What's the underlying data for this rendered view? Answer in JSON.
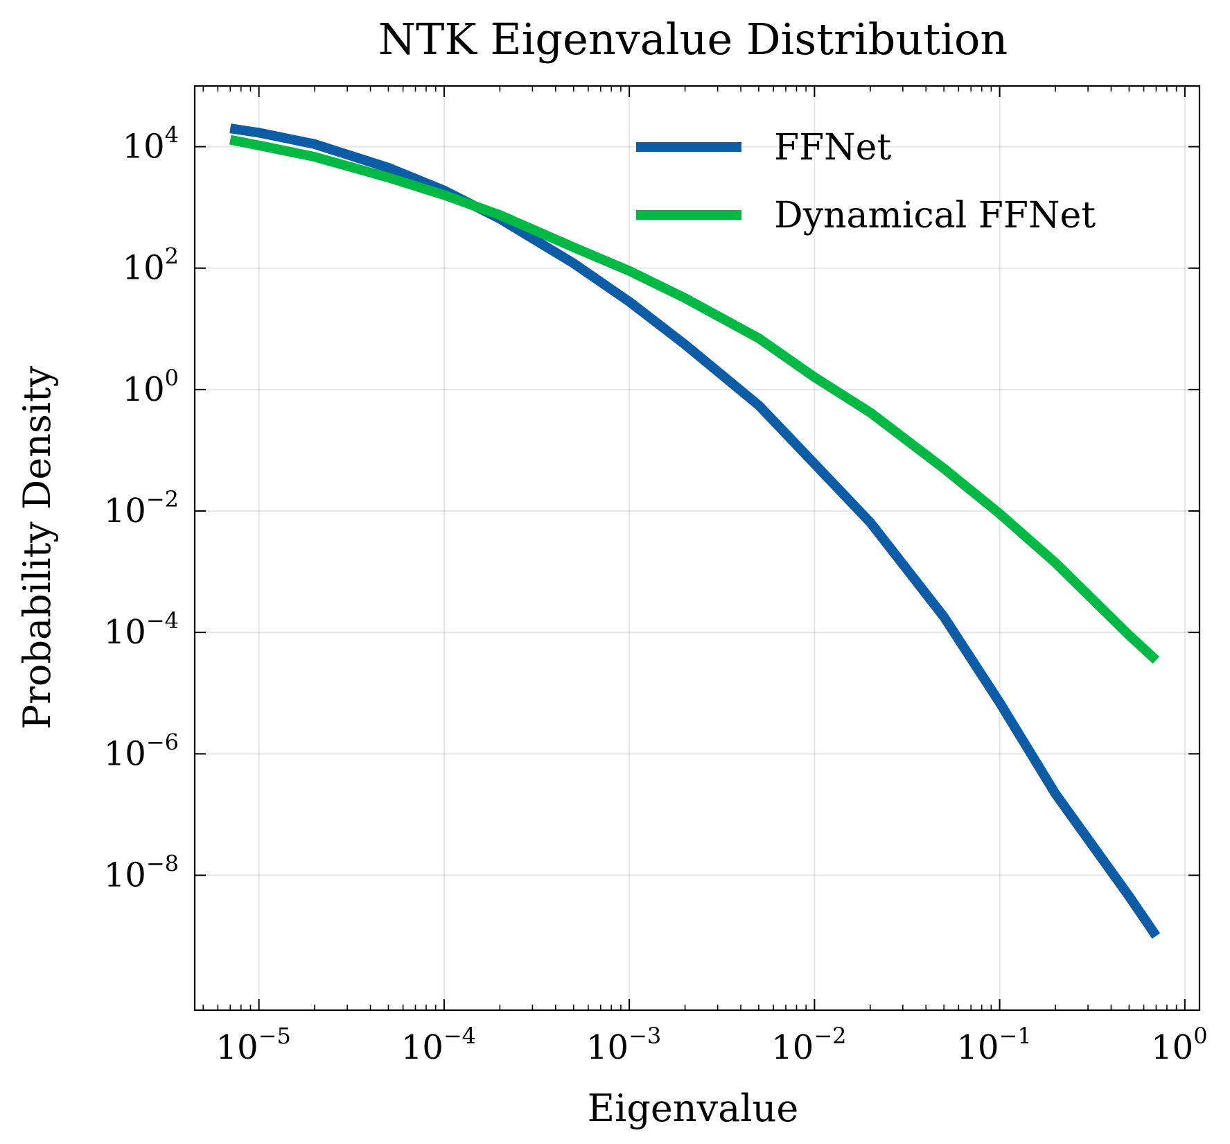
{
  "chart_data": {
    "type": "line",
    "title": "NTK Eigenvalue Distribution",
    "xlabel": "Eigenvalue",
    "ylabel": "Probability Density",
    "xscale": "log",
    "yscale": "log",
    "xlim": [
      4.5e-06,
      1.2
    ],
    "ylim": [
      6e-11,
      100000.0
    ],
    "grid": true,
    "legend_position": "top-right",
    "x_ticks": [
      {
        "value": 1e-05,
        "base": "10",
        "exp": "−5"
      },
      {
        "value": 0.0001,
        "base": "10",
        "exp": "−4"
      },
      {
        "value": 0.001,
        "base": "10",
        "exp": "−3"
      },
      {
        "value": 0.01,
        "base": "10",
        "exp": "−2"
      },
      {
        "value": 0.1,
        "base": "10",
        "exp": "−1"
      },
      {
        "value": 1,
        "base": "10",
        "exp": "0"
      }
    ],
    "y_ticks": [
      {
        "value": 10000.0,
        "base": "10",
        "exp": "4"
      },
      {
        "value": 100.0,
        "base": "10",
        "exp": "2"
      },
      {
        "value": 1,
        "base": "10",
        "exp": "0"
      },
      {
        "value": 0.01,
        "base": "10",
        "exp": "−2"
      },
      {
        "value": 0.0001,
        "base": "10",
        "exp": "−4"
      },
      {
        "value": 1e-06,
        "base": "10",
        "exp": "−6"
      },
      {
        "value": 1e-08,
        "base": "10",
        "exp": "−8"
      }
    ],
    "series": [
      {
        "name": "FFNet",
        "color": "#0c5da5",
        "x": [
          7e-06,
          1e-05,
          2e-05,
          5e-05,
          0.0001,
          0.0002,
          0.0005,
          0.001,
          0.002,
          0.005,
          0.01,
          0.02,
          0.05,
          0.1,
          0.2,
          0.5,
          0.7
        ],
        "y": [
          20000,
          17000,
          11000,
          4500,
          1900,
          650,
          120,
          28,
          5.5,
          0.55,
          0.06,
          0.0065,
          0.00018,
          7e-06,
          2.2e-07,
          4.5e-09,
          1e-09
        ]
      },
      {
        "name": "Dynamical FFNet",
        "color": "#00b945",
        "x": [
          7e-06,
          1e-05,
          2e-05,
          5e-05,
          0.0001,
          0.0002,
          0.0005,
          0.001,
          0.002,
          0.005,
          0.01,
          0.02,
          0.05,
          0.1,
          0.2,
          0.5,
          0.7
        ],
        "y": [
          13000,
          10500,
          6800,
          3100,
          1600,
          750,
          220,
          90,
          32,
          7,
          1.6,
          0.42,
          0.05,
          0.009,
          0.0014,
          9e-05,
          3.5e-05
        ]
      }
    ]
  }
}
